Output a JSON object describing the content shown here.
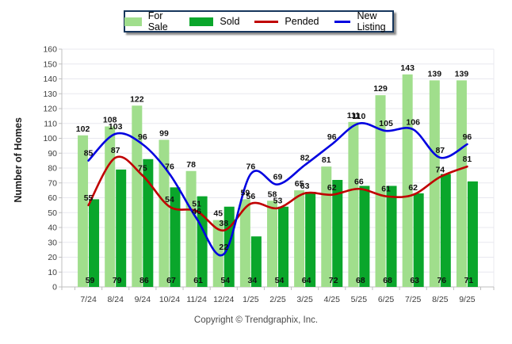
{
  "chart_data": {
    "type": "combo",
    "categories": [
      "7/24",
      "8/24",
      "9/24",
      "10/24",
      "11/24",
      "12/24",
      "1/25",
      "2/25",
      "3/25",
      "4/25",
      "5/25",
      "6/25",
      "7/25",
      "8/25",
      "9/25"
    ],
    "series": [
      {
        "name": "For Sale",
        "type": "bar",
        "color": "#A0DE8C",
        "values": [
          102,
          108,
          122,
          99,
          78,
          45,
          59,
          58,
          65,
          81,
          111,
          129,
          143,
          139,
          139
        ]
      },
      {
        "name": "Sold",
        "type": "bar",
        "color": "#0AA62B",
        "values": [
          59,
          79,
          86,
          67,
          61,
          54,
          34,
          54,
          64,
          72,
          68,
          68,
          63,
          76,
          71
        ]
      },
      {
        "name": "Pended",
        "type": "line",
        "color": "#C00000",
        "values": [
          55,
          87,
          75,
          54,
          51,
          38,
          56,
          53,
          63,
          62,
          66,
          61,
          62,
          74,
          81
        ]
      },
      {
        "name": "New Listing",
        "type": "line",
        "color": "#0000E0",
        "values": [
          85,
          103,
          96,
          76,
          46,
          22,
          76,
          69,
          82,
          96,
          110,
          105,
          106,
          87,
          96
        ]
      }
    ],
    "title": "",
    "xlabel": "",
    "ylabel": "Number of Homes",
    "ylim": [
      0,
      160
    ],
    "ytick_step": 10,
    "grid": true,
    "legend_position": "top"
  },
  "footer": {
    "copyright": "Copyright © Trendgraphix, Inc."
  },
  "colors": {
    "grid_line": "#E8E8EF",
    "axis_line": "#BFBFBF",
    "label_text": "#111111",
    "tick_text": "#3d3d3d",
    "legend_border": "#16365c"
  }
}
